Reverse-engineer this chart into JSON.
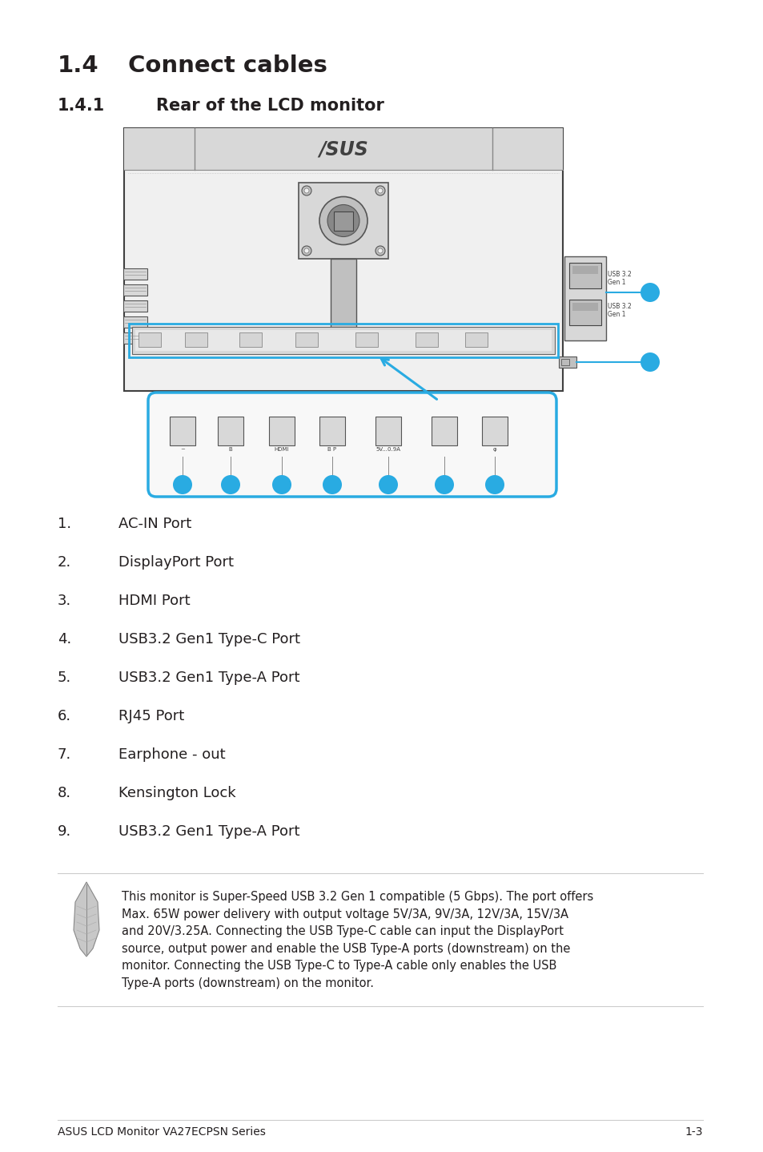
{
  "title_section": "1.4",
  "title_text": "Connect cables",
  "subtitle_section": "1.4.1",
  "subtitle_text": "Rear of the LCD monitor",
  "list_items": [
    {
      "num": "1.",
      "text": "AC-IN Port"
    },
    {
      "num": "2.",
      "text": "DisplayPort Port"
    },
    {
      "num": "3.",
      "text": "HDMI Port"
    },
    {
      "num": "4.",
      "text": "USB3.2 Gen1 Type-C Port"
    },
    {
      "num": "5.",
      "text": "USB3.2 Gen1 Type-A Port"
    },
    {
      "num": "6.",
      "text": "RJ45 Port"
    },
    {
      "num": "7.",
      "text": "Earphone - out"
    },
    {
      "num": "8.",
      "text": "Kensington Lock"
    },
    {
      "num": "9.",
      "text": "USB3.2 Gen1 Type-A Port"
    }
  ],
  "note_text": "This monitor is Super-Speed USB 3.2 Gen 1 compatible (5 Gbps). The port offers\nMax. 65W power delivery with output voltage 5V/3A, 9V/3A, 12V/3A, 15V/3A\nand 20V/3.25A. Connecting the USB Type-C cable can input the DisplayPort\nsource, output power and enable the USB Type-A ports (downstream) on the\nmonitor. Connecting the USB Type-C to Type-A cable only enables the USB\nType-A ports (downstream) on the monitor.",
  "footer_left": "ASUS LCD Monitor VA27ECPSN Series",
  "footer_right": "1-3",
  "bg_color": "#ffffff",
  "text_color": "#231f20",
  "accent_color": "#29abe2"
}
